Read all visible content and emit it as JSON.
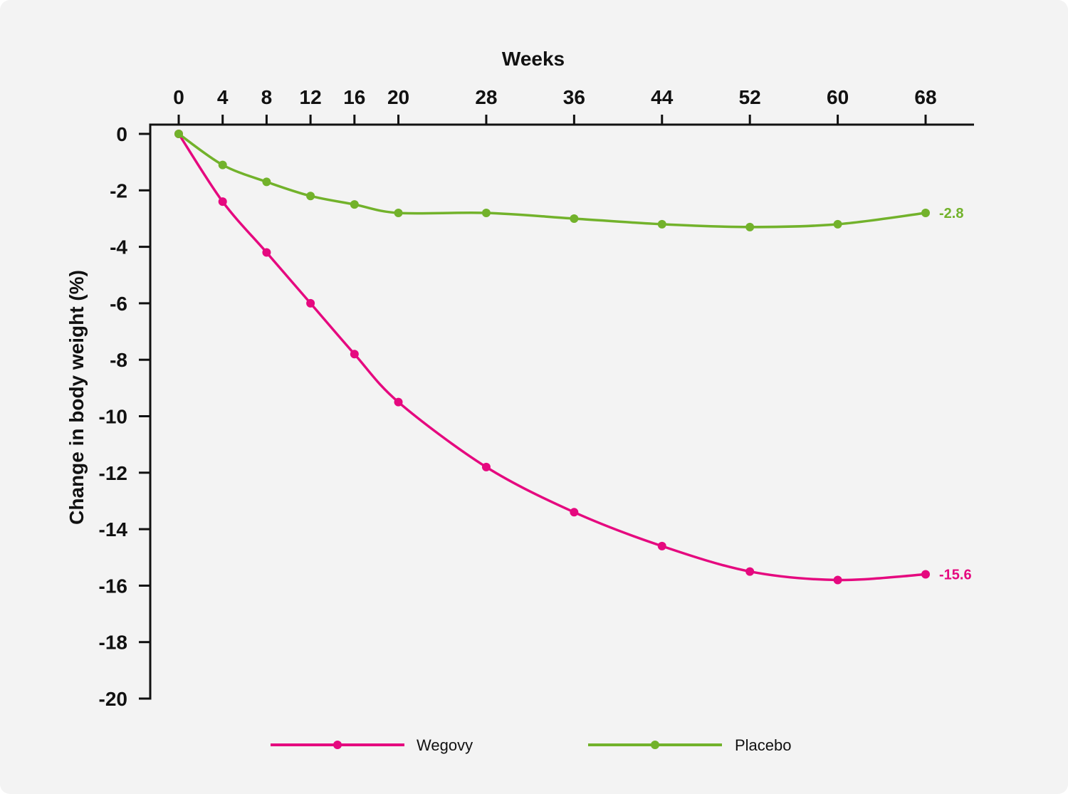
{
  "chart_data": {
    "type": "line",
    "title": "",
    "xlabel": "Weeks",
    "ylabel": "Change in body weight (%)",
    "x": [
      0,
      4,
      8,
      12,
      16,
      20,
      28,
      36,
      44,
      52,
      60,
      68
    ],
    "x_ticks": [
      "0",
      "4",
      "8",
      "12",
      "16",
      "20",
      "28",
      "36",
      "44",
      "52",
      "60",
      "68"
    ],
    "y_ticks": [
      "0",
      "-2",
      "-4",
      "-6",
      "-8",
      "-10",
      "-12",
      "-14",
      "-16",
      "-18",
      "-20"
    ],
    "ylim": [
      -20,
      0
    ],
    "x_axis_position": "top",
    "grid": false,
    "legend_position": "bottom-center",
    "series": [
      {
        "name": "Wegovy",
        "color": "#e5097f",
        "values": [
          0,
          -2.4,
          -4.2,
          -6.0,
          -7.8,
          -9.5,
          -11.8,
          -13.4,
          -14.6,
          -15.5,
          -15.8,
          -15.6
        ],
        "end_label": "-15.6"
      },
      {
        "name": "Placebo",
        "color": "#72b22b",
        "values": [
          0,
          -1.1,
          -1.7,
          -2.2,
          -2.5,
          -2.8,
          -2.8,
          -3.0,
          -3.2,
          -3.3,
          -3.2,
          -2.8
        ],
        "end_label": "-2.8"
      }
    ]
  }
}
